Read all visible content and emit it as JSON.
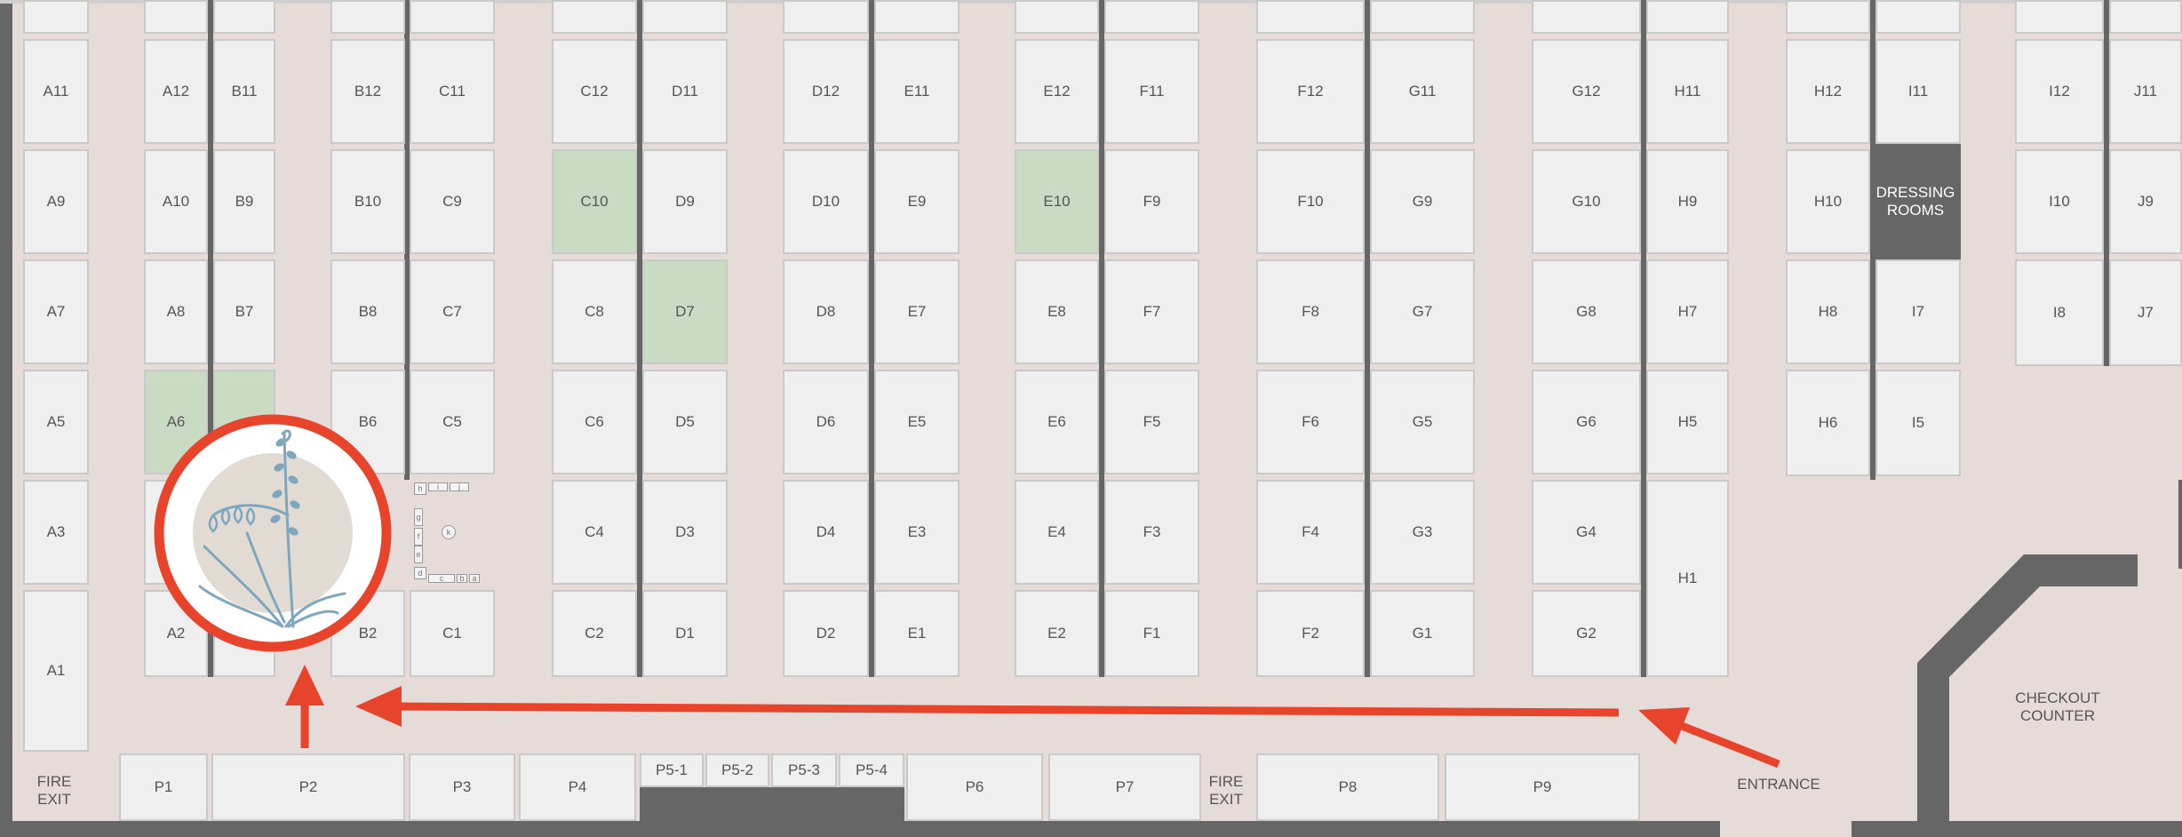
{
  "booths": {
    "r1": {
      "A11": "A11",
      "A12": "A12",
      "B11": "B11",
      "B12": "B12",
      "C11": "C11",
      "C12": "C12",
      "D11": "D11",
      "D12": "D12",
      "E11": "E11",
      "E12": "E12",
      "F11": "F11",
      "F12": "F12",
      "G11": "G11",
      "G12": "G12",
      "H11": "H11",
      "H12": "H12",
      "I11": "I11",
      "I12": "I12",
      "J11": "J11"
    },
    "r2": {
      "A9": "A9",
      "A10": "A10",
      "B9": "B9",
      "B10": "B10",
      "C9": "C9",
      "C10": "C10",
      "D9": "D9",
      "D10": "D10",
      "E9": "E9",
      "E10": "E10",
      "F9": "F9",
      "F10": "F10",
      "G9": "G9",
      "G10": "G10",
      "H9": "H9",
      "H10": "H10",
      "I10": "I10",
      "J9": "J9"
    },
    "r3": {
      "A7": "A7",
      "A8": "A8",
      "B7": "B7",
      "B8": "B8",
      "C7": "C7",
      "C8": "C8",
      "D7": "D7",
      "D8": "D8",
      "E7": "E7",
      "E8": "E8",
      "F7": "F7",
      "F8": "F8",
      "G7": "G7",
      "G8": "G8",
      "H7": "H7",
      "H8": "H8",
      "I7": "I7",
      "I8": "I8",
      "J7": "J7"
    },
    "r4": {
      "A5": "A5",
      "A6": "A6",
      "B6": "B6",
      "C5": "C5",
      "C6": "C6",
      "D5": "D5",
      "D6": "D6",
      "E5": "E5",
      "E6": "E6",
      "F5": "F5",
      "F6": "F6",
      "G5": "G5",
      "G6": "G6",
      "H5": "H5",
      "H6": "H6",
      "I5": "I5"
    },
    "r5": {
      "A3": "A3",
      "C4": "C4",
      "D3": "D3",
      "D4": "D4",
      "E3": "E3",
      "E4": "E4",
      "F3": "F3",
      "F4": "F4",
      "G3": "G3",
      "G4": "G4",
      "H1": "H1"
    },
    "r6": {
      "A1": "A1",
      "A2": "A2",
      "B2": "B2",
      "C1": "C1",
      "C2": "C2",
      "D1": "D1",
      "D2": "D2",
      "E1": "E1",
      "E2": "E2",
      "F1": "F1",
      "F2": "F2",
      "G1": "G1",
      "G2": "G2"
    },
    "perimeter": {
      "P1": "P1",
      "P2": "P2",
      "P3": "P3",
      "P4": "P4",
      "P5_1": "P5-1",
      "P5_2": "P5-2",
      "P5_3": "P5-3",
      "P5_4": "P5-4",
      "P6": "P6",
      "P7": "P7",
      "P8": "P8",
      "P9": "P9"
    }
  },
  "dressing_rooms": "DRESSING ROOMS",
  "highlighted_booths": [
    "C10",
    "E10",
    "D7",
    "A6",
    "B5"
  ],
  "labels": {
    "fire_exit_left": "FIRE EXIT",
    "fire_exit_mid": "FIRE EXIT",
    "entrance": "ENTRANCE",
    "checkout_counter": "CHECKOUT COUNTER"
  },
  "small_tables": {
    "h": "h",
    "i": "i",
    "j": "j",
    "g": "g",
    "f": "f",
    "e": "e",
    "d": "d",
    "c": "c",
    "b": "b",
    "a": "a",
    "k": "k"
  },
  "icons": {
    "logo": "lily-of-the-valley-logo-icon",
    "arrows": "route-arrow-icon"
  },
  "colors": {
    "highlight": "#c9dbc2",
    "wall": "#666666",
    "arrow": "#e8432b",
    "floor": "#e5dbd8"
  }
}
